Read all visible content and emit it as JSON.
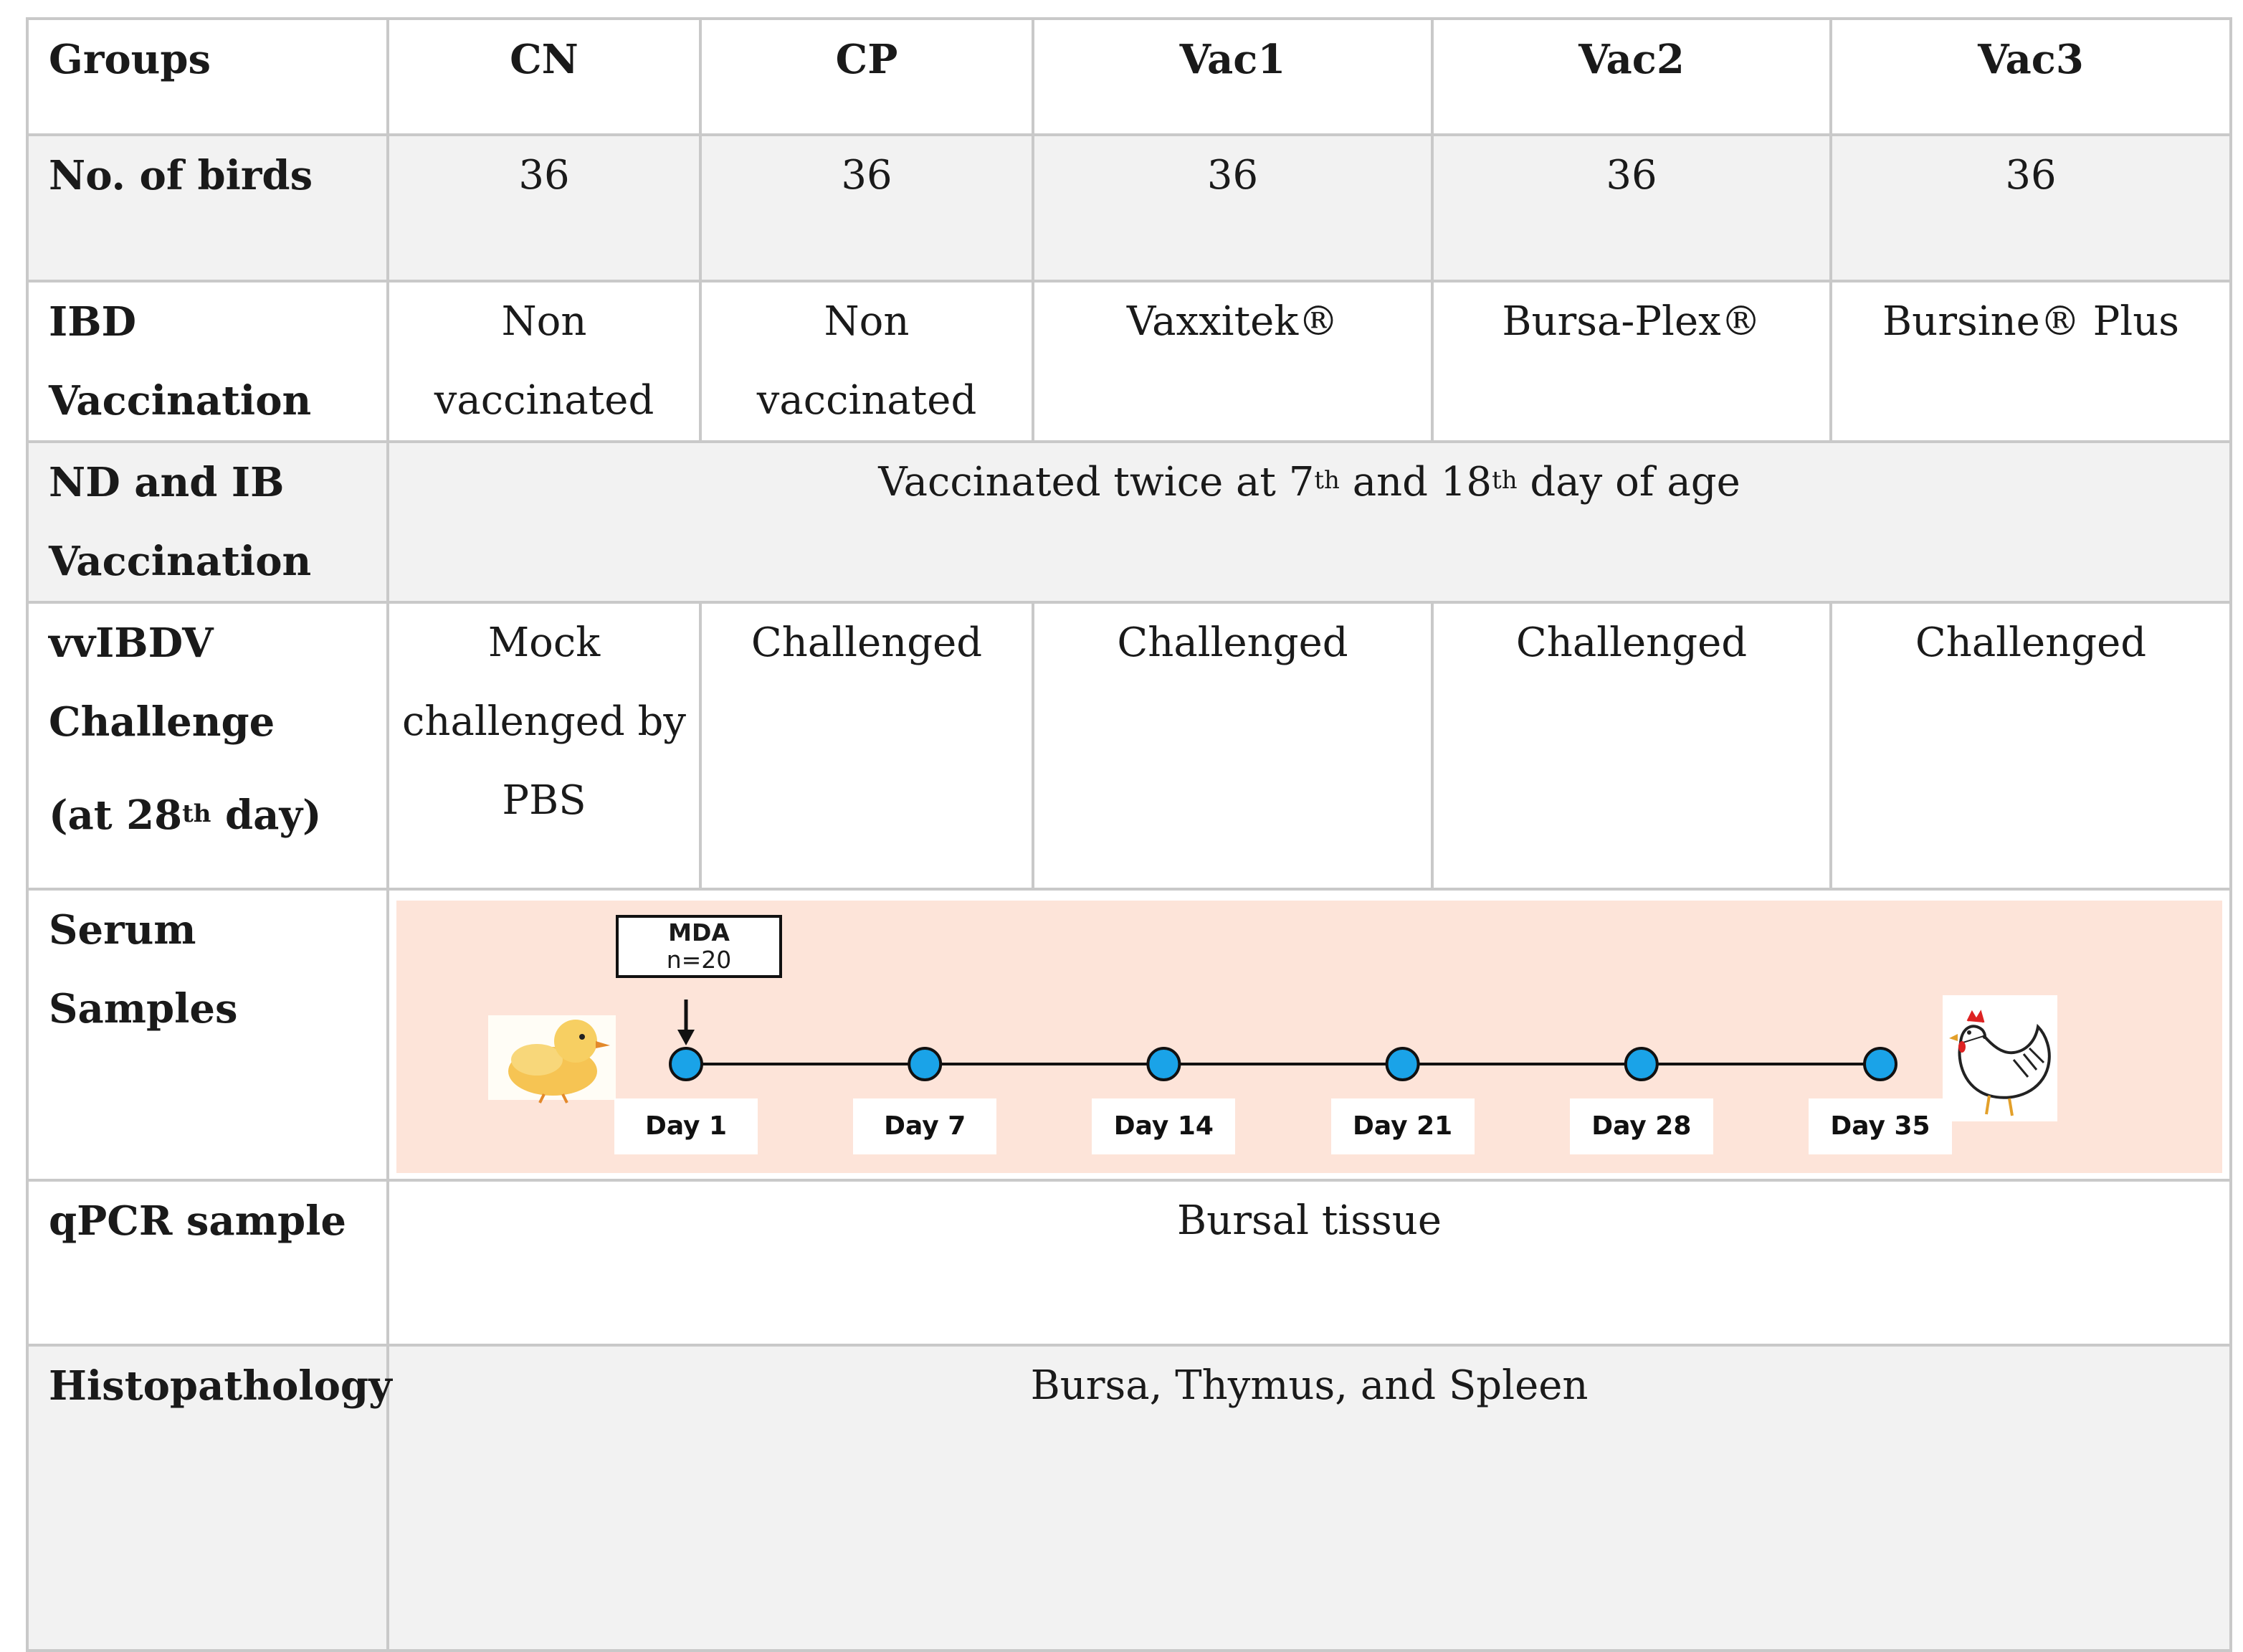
{
  "header": {
    "label": "Groups",
    "groups": [
      "CN",
      "CP",
      "Vac1",
      "Vac2",
      "Vac3"
    ]
  },
  "rows": {
    "birds": {
      "label": "No. of birds",
      "values": [
        "36",
        "36",
        "36",
        "36",
        "36"
      ]
    },
    "ibd": {
      "label_line1": "IBD",
      "label_line2": "Vaccination",
      "values": [
        {
          "line1": "Non",
          "line2": "vaccinated"
        },
        {
          "line1": "Non",
          "line2": "vaccinated"
        },
        {
          "line1": "Vaxxitek®",
          "line2": ""
        },
        {
          "line1": "Bursa-Plex®",
          "line2": ""
        },
        {
          "line1": "Bursine® Plus",
          "line2": ""
        }
      ]
    },
    "nd_ib": {
      "label_line1": "ND and IB",
      "label_line2": "Vaccination",
      "text_pre": "Vaccinated twice at 7",
      "sup1": "th",
      "text_mid": " and 18",
      "sup2": "th",
      "text_post": " day of age"
    },
    "challenge": {
      "label_line1": "vvIBDV",
      "label_line2": "Challenge",
      "label_line3_pre": "(at 28",
      "label_line3_sup": "th",
      "label_line3_post": "  day)",
      "cn_line1": "Mock",
      "cn_line2": "challenged by",
      "cn_line3": "PBS",
      "others": [
        "Challenged",
        "Challenged",
        "Challenged",
        "Challenged"
      ]
    },
    "serum": {
      "label": "Serum Samples",
      "mda_title": "MDA",
      "mda_n": "n=20",
      "days": [
        "Day 1",
        "Day 7",
        "Day 14",
        "Day 21",
        "Day 28",
        "Day 35"
      ],
      "colors": {
        "panel": "#fde4d9",
        "marker": "#1aa3e8",
        "line": "#111111"
      },
      "icons": [
        "chick-icon",
        "hen-icon"
      ]
    },
    "qpcr": {
      "label": "qPCR sample",
      "value": "Bursal tissue"
    },
    "histo": {
      "label": "Histopathology",
      "value": "Bursa, Thymus, and Spleen"
    }
  }
}
